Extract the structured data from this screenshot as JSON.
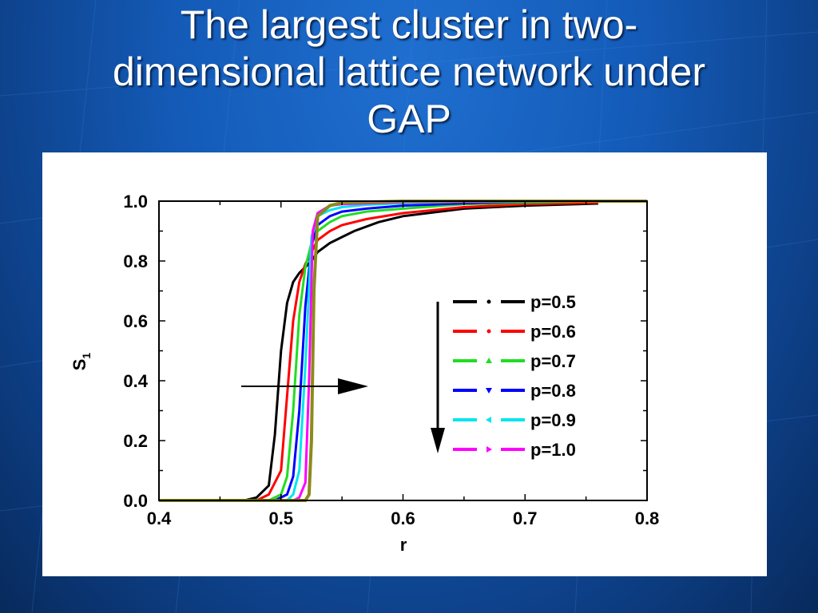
{
  "slide": {
    "title_lines": [
      "The largest cluster in two-",
      "dimensional lattice network under",
      "GAP"
    ]
  },
  "colors": {
    "background": "#145bb8",
    "title_text": "#ffffff",
    "panel": "#ffffff"
  },
  "chart_data": {
    "type": "line",
    "title": "",
    "xlabel": "r",
    "ylabel": "S",
    "ylabel_subscript": "1",
    "xlim": [
      0.4,
      0.8
    ],
    "ylim": [
      0.0,
      1.0
    ],
    "x_ticks": [
      "0.4",
      "0.5",
      "0.6",
      "0.7",
      "0.8"
    ],
    "y_ticks": [
      "0.0",
      "0.2",
      "0.4",
      "0.6",
      "0.8",
      "1.0"
    ],
    "grid": false,
    "legend_position": "center-right",
    "annotations": [
      {
        "type": "arrow",
        "direction": "right",
        "meaning": "increasing p shifts transition right"
      },
      {
        "type": "arrow",
        "direction": "down",
        "meaning": "increasing p order in legend"
      }
    ],
    "series": [
      {
        "name": "p=0.5",
        "color": "#000000",
        "marker": "dot",
        "points": [
          [
            0.4,
            0
          ],
          [
            0.47,
            0
          ],
          [
            0.48,
            0.01
          ],
          [
            0.49,
            0.05
          ],
          [
            0.495,
            0.22
          ],
          [
            0.5,
            0.5
          ],
          [
            0.505,
            0.66
          ],
          [
            0.51,
            0.73
          ],
          [
            0.515,
            0.76
          ],
          [
            0.52,
            0.78
          ],
          [
            0.525,
            0.8
          ],
          [
            0.53,
            0.83
          ],
          [
            0.54,
            0.86
          ],
          [
            0.55,
            0.88
          ],
          [
            0.56,
            0.9
          ],
          [
            0.58,
            0.93
          ],
          [
            0.6,
            0.95
          ],
          [
            0.65,
            0.975
          ],
          [
            0.7,
            0.985
          ],
          [
            0.76,
            0.992
          ]
        ]
      },
      {
        "name": "p=0.6",
        "color": "#ff0000",
        "marker": "dot",
        "points": [
          [
            0.4,
            0
          ],
          [
            0.48,
            0
          ],
          [
            0.49,
            0.02
          ],
          [
            0.5,
            0.1
          ],
          [
            0.505,
            0.35
          ],
          [
            0.51,
            0.6
          ],
          [
            0.515,
            0.73
          ],
          [
            0.52,
            0.79
          ],
          [
            0.525,
            0.83
          ],
          [
            0.53,
            0.87
          ],
          [
            0.54,
            0.9
          ],
          [
            0.55,
            0.92
          ],
          [
            0.57,
            0.94
          ],
          [
            0.6,
            0.96
          ],
          [
            0.65,
            0.98
          ],
          [
            0.7,
            0.99
          ],
          [
            0.76,
            0.995
          ]
        ]
      },
      {
        "name": "p=0.7",
        "color": "#22dd22",
        "marker": "triangle-up",
        "points": [
          [
            0.4,
            0
          ],
          [
            0.49,
            0
          ],
          [
            0.5,
            0.02
          ],
          [
            0.505,
            0.08
          ],
          [
            0.51,
            0.3
          ],
          [
            0.515,
            0.62
          ],
          [
            0.52,
            0.78
          ],
          [
            0.525,
            0.86
          ],
          [
            0.53,
            0.9
          ],
          [
            0.54,
            0.93
          ],
          [
            0.55,
            0.95
          ],
          [
            0.57,
            0.965
          ],
          [
            0.6,
            0.975
          ],
          [
            0.65,
            0.99
          ],
          [
            0.7,
            0.995
          ],
          [
            0.76,
            1
          ]
        ]
      },
      {
        "name": "p=0.8",
        "color": "#0000ff",
        "marker": "triangle-down",
        "points": [
          [
            0.4,
            0
          ],
          [
            0.495,
            0
          ],
          [
            0.505,
            0.02
          ],
          [
            0.51,
            0.08
          ],
          [
            0.515,
            0.3
          ],
          [
            0.52,
            0.65
          ],
          [
            0.525,
            0.85
          ],
          [
            0.53,
            0.92
          ],
          [
            0.54,
            0.95
          ],
          [
            0.55,
            0.965
          ],
          [
            0.57,
            0.975
          ],
          [
            0.6,
            0.985
          ],
          [
            0.65,
            0.993
          ],
          [
            0.7,
            0.998
          ],
          [
            0.8,
            1
          ]
        ]
      },
      {
        "name": "p=0.9",
        "color": "#00e5ee",
        "marker": "triangle-left",
        "points": [
          [
            0.4,
            0
          ],
          [
            0.505,
            0
          ],
          [
            0.51,
            0.02
          ],
          [
            0.515,
            0.1
          ],
          [
            0.52,
            0.45
          ],
          [
            0.525,
            0.88
          ],
          [
            0.53,
            0.95
          ],
          [
            0.54,
            0.97
          ],
          [
            0.55,
            0.98
          ],
          [
            0.57,
            0.988
          ],
          [
            0.6,
            0.993
          ],
          [
            0.65,
            0.998
          ],
          [
            0.8,
            1
          ]
        ]
      },
      {
        "name": "p=1.0",
        "color": "#ff00ff",
        "marker": "triangle-right",
        "points": [
          [
            0.4,
            0
          ],
          [
            0.51,
            0
          ],
          [
            0.515,
            0.01
          ],
          [
            0.52,
            0.06
          ],
          [
            0.523,
            0.4
          ],
          [
            0.526,
            0.9
          ],
          [
            0.53,
            0.96
          ],
          [
            0.54,
            0.985
          ],
          [
            0.55,
            0.99
          ],
          [
            0.6,
            0.997
          ],
          [
            0.8,
            1
          ]
        ]
      },
      {
        "name": "",
        "color": "#8b8b1a",
        "marker": "none",
        "points": [
          [
            0.4,
            0
          ],
          [
            0.52,
            0
          ],
          [
            0.523,
            0.02
          ],
          [
            0.525,
            0.2
          ],
          [
            0.527,
            0.7
          ],
          [
            0.53,
            0.95
          ],
          [
            0.54,
            0.985
          ],
          [
            0.55,
            0.995
          ],
          [
            0.6,
            1
          ],
          [
            0.8,
            1
          ]
        ]
      }
    ]
  }
}
